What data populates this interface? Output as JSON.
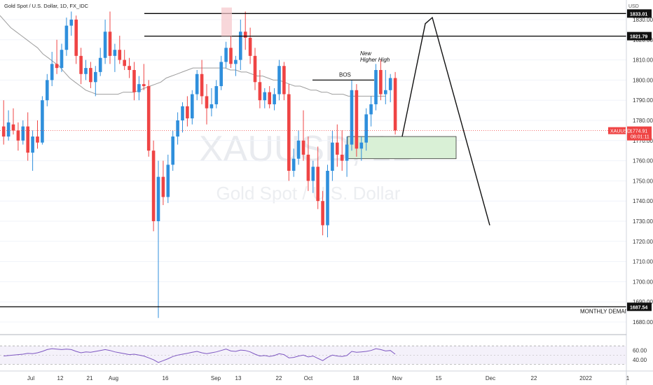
{
  "header": {
    "title": "Gold Spot / U.S. Dollar, 1D, FX_IDC",
    "currency": "USD",
    "watermark_symbol": "XAUUSD, 1D",
    "watermark_name": "Gold Spot / U.S. Dollar"
  },
  "chart_data": {
    "type": "candlestick",
    "x_ticks": [
      "Jul",
      "12",
      "21",
      "Aug",
      "16",
      "Sep",
      "13",
      "22",
      "Oct",
      "18",
      "Nov",
      "15",
      "Dec",
      "22",
      "2022",
      "1"
    ],
    "y_ticks": [
      1680,
      1690,
      1700,
      1710,
      1720,
      1730,
      1740,
      1750,
      1760,
      1770,
      1780,
      1790,
      1800,
      1810,
      1820,
      1830
    ],
    "ylim": [
      1676,
      1836
    ],
    "moving_average": [
      1832,
      1829,
      1826,
      1824,
      1822,
      1820,
      1818,
      1816,
      1813,
      1811,
      1809,
      1807,
      1804,
      1801,
      1799,
      1797,
      1795,
      1794,
      1793,
      1793,
      1793,
      1793,
      1793,
      1794,
      1794,
      1794,
      1795,
      1796,
      1797,
      1798,
      1799,
      1801,
      1802,
      1803,
      1804,
      1805,
      1806,
      1806,
      1806,
      1806,
      1806,
      1806,
      1806,
      1805,
      1805,
      1804,
      1804,
      1803,
      1802,
      1802,
      1801,
      1800,
      1800,
      1799,
      1798,
      1797,
      1797,
      1796,
      1795,
      1795,
      1794,
      1794,
      1793,
      1793,
      1793,
      1792,
      1792,
      1792,
      1792,
      1792,
      1792,
      1792,
      1792
    ],
    "candles": [
      {
        "o": 1777,
        "h": 1790,
        "l": 1768,
        "c": 1772
      },
      {
        "o": 1772,
        "h": 1785,
        "l": 1770,
        "c": 1779
      },
      {
        "o": 1778,
        "h": 1786,
        "l": 1773,
        "c": 1775
      },
      {
        "o": 1775,
        "h": 1779,
        "l": 1765,
        "c": 1770
      },
      {
        "o": 1770,
        "h": 1780,
        "l": 1768,
        "c": 1777
      },
      {
        "o": 1777,
        "h": 1784,
        "l": 1760,
        "c": 1764
      },
      {
        "o": 1764,
        "h": 1775,
        "l": 1755,
        "c": 1772
      },
      {
        "o": 1772,
        "h": 1780,
        "l": 1766,
        "c": 1769
      },
      {
        "o": 1769,
        "h": 1792,
        "l": 1768,
        "c": 1790
      },
      {
        "o": 1790,
        "h": 1803,
        "l": 1787,
        "c": 1800
      },
      {
        "o": 1800,
        "h": 1814,
        "l": 1797,
        "c": 1808
      },
      {
        "o": 1808,
        "h": 1820,
        "l": 1803,
        "c": 1806
      },
      {
        "o": 1806,
        "h": 1818,
        "l": 1804,
        "c": 1815
      },
      {
        "o": 1815,
        "h": 1831,
        "l": 1812,
        "c": 1827
      },
      {
        "o": 1827,
        "h": 1834,
        "l": 1822,
        "c": 1830
      },
      {
        "o": 1830,
        "h": 1832,
        "l": 1808,
        "c": 1812
      },
      {
        "o": 1812,
        "h": 1816,
        "l": 1798,
        "c": 1803
      },
      {
        "o": 1803,
        "h": 1810,
        "l": 1800,
        "c": 1806
      },
      {
        "o": 1806,
        "h": 1809,
        "l": 1796,
        "c": 1799
      },
      {
        "o": 1799,
        "h": 1807,
        "l": 1792,
        "c": 1804
      },
      {
        "o": 1804,
        "h": 1816,
        "l": 1802,
        "c": 1811
      },
      {
        "o": 1811,
        "h": 1830,
        "l": 1808,
        "c": 1824
      },
      {
        "o": 1824,
        "h": 1834,
        "l": 1808,
        "c": 1812
      },
      {
        "o": 1812,
        "h": 1818,
        "l": 1804,
        "c": 1815
      },
      {
        "o": 1815,
        "h": 1822,
        "l": 1808,
        "c": 1810
      },
      {
        "o": 1810,
        "h": 1815,
        "l": 1805,
        "c": 1807
      },
      {
        "o": 1807,
        "h": 1811,
        "l": 1801,
        "c": 1805
      },
      {
        "o": 1805,
        "h": 1809,
        "l": 1790,
        "c": 1794
      },
      {
        "o": 1794,
        "h": 1802,
        "l": 1790,
        "c": 1798
      },
      {
        "o": 1798,
        "h": 1808,
        "l": 1795,
        "c": 1797
      },
      {
        "o": 1797,
        "h": 1800,
        "l": 1762,
        "c": 1765
      },
      {
        "o": 1765,
        "h": 1770,
        "l": 1725,
        "c": 1730
      },
      {
        "o": 1730,
        "h": 1760,
        "l": 1682,
        "c": 1752
      },
      {
        "o": 1752,
        "h": 1760,
        "l": 1738,
        "c": 1742
      },
      {
        "o": 1742,
        "h": 1763,
        "l": 1739,
        "c": 1758
      },
      {
        "o": 1758,
        "h": 1775,
        "l": 1755,
        "c": 1772
      },
      {
        "o": 1772,
        "h": 1784,
        "l": 1768,
        "c": 1780
      },
      {
        "o": 1780,
        "h": 1789,
        "l": 1774,
        "c": 1787
      },
      {
        "o": 1787,
        "h": 1792,
        "l": 1777,
        "c": 1781
      },
      {
        "o": 1781,
        "h": 1795,
        "l": 1778,
        "c": 1793
      },
      {
        "o": 1793,
        "h": 1805,
        "l": 1790,
        "c": 1803
      },
      {
        "o": 1803,
        "h": 1810,
        "l": 1788,
        "c": 1792
      },
      {
        "o": 1792,
        "h": 1798,
        "l": 1778,
        "c": 1786
      },
      {
        "o": 1786,
        "h": 1796,
        "l": 1782,
        "c": 1788
      },
      {
        "o": 1788,
        "h": 1800,
        "l": 1786,
        "c": 1797
      },
      {
        "o": 1797,
        "h": 1812,
        "l": 1795,
        "c": 1809
      },
      {
        "o": 1809,
        "h": 1819,
        "l": 1806,
        "c": 1816
      },
      {
        "o": 1816,
        "h": 1822,
        "l": 1806,
        "c": 1808
      },
      {
        "o": 1808,
        "h": 1812,
        "l": 1802,
        "c": 1810
      },
      {
        "o": 1810,
        "h": 1830,
        "l": 1805,
        "c": 1824
      },
      {
        "o": 1824,
        "h": 1834,
        "l": 1815,
        "c": 1821
      },
      {
        "o": 1821,
        "h": 1826,
        "l": 1808,
        "c": 1812
      },
      {
        "o": 1812,
        "h": 1816,
        "l": 1795,
        "c": 1799
      },
      {
        "o": 1799,
        "h": 1805,
        "l": 1786,
        "c": 1790
      },
      {
        "o": 1790,
        "h": 1796,
        "l": 1786,
        "c": 1794
      },
      {
        "o": 1794,
        "h": 1797,
        "l": 1786,
        "c": 1788
      },
      {
        "o": 1788,
        "h": 1796,
        "l": 1785,
        "c": 1793
      },
      {
        "o": 1793,
        "h": 1810,
        "l": 1790,
        "c": 1807
      },
      {
        "o": 1807,
        "h": 1809,
        "l": 1790,
        "c": 1793
      },
      {
        "o": 1793,
        "h": 1798,
        "l": 1750,
        "c": 1755
      },
      {
        "o": 1755,
        "h": 1766,
        "l": 1752,
        "c": 1761
      },
      {
        "o": 1761,
        "h": 1775,
        "l": 1758,
        "c": 1770
      },
      {
        "o": 1770,
        "h": 1785,
        "l": 1760,
        "c": 1763
      },
      {
        "o": 1763,
        "h": 1772,
        "l": 1745,
        "c": 1750
      },
      {
        "o": 1750,
        "h": 1760,
        "l": 1744,
        "c": 1757
      },
      {
        "o": 1757,
        "h": 1767,
        "l": 1736,
        "c": 1740
      },
      {
        "o": 1740,
        "h": 1745,
        "l": 1723,
        "c": 1728
      },
      {
        "o": 1728,
        "h": 1758,
        "l": 1722,
        "c": 1755
      },
      {
        "o": 1755,
        "h": 1775,
        "l": 1750,
        "c": 1769
      },
      {
        "o": 1769,
        "h": 1778,
        "l": 1757,
        "c": 1763
      },
      {
        "o": 1763,
        "h": 1775,
        "l": 1755,
        "c": 1760
      },
      {
        "o": 1760,
        "h": 1772,
        "l": 1752,
        "c": 1768
      },
      {
        "o": 1768,
        "h": 1800,
        "l": 1765,
        "c": 1795
      },
      {
        "o": 1795,
        "h": 1798,
        "l": 1762,
        "c": 1766
      },
      {
        "o": 1766,
        "h": 1772,
        "l": 1760,
        "c": 1769
      },
      {
        "o": 1769,
        "h": 1786,
        "l": 1765,
        "c": 1783
      },
      {
        "o": 1783,
        "h": 1792,
        "l": 1777,
        "c": 1788
      },
      {
        "o": 1788,
        "h": 1808,
        "l": 1785,
        "c": 1805
      },
      {
        "o": 1805,
        "h": 1810,
        "l": 1790,
        "c": 1793
      },
      {
        "o": 1793,
        "h": 1805,
        "l": 1788,
        "c": 1795
      },
      {
        "o": 1795,
        "h": 1803,
        "l": 1789,
        "c": 1801
      },
      {
        "o": 1801,
        "h": 1804,
        "l": 1773,
        "c": 1775
      }
    ],
    "levels": [
      {
        "price": 1833.01,
        "label": "1833.01"
      },
      {
        "price": 1821.79,
        "label": "1821.79"
      },
      {
        "price": 1687.54,
        "label": "1687.54"
      }
    ],
    "current_price": {
      "value": 1774.91,
      "label": "XAUUSD",
      "value_label": "1774.91",
      "countdown": "08:01:11"
    },
    "annotations": {
      "bos": "BOS",
      "new_high_line1": "New",
      "new_high_line2": "Higher High",
      "monthly_demand": "MONTHLY DEMAND"
    },
    "rsi": {
      "y_ticks": [
        "60.00",
        "40.00"
      ],
      "values": [
        48,
        49,
        50,
        51,
        52,
        54,
        53,
        55,
        58,
        62,
        64,
        63,
        62,
        63,
        62,
        58,
        55,
        57,
        56,
        58,
        60,
        62,
        60,
        57,
        55,
        53,
        51,
        52,
        50,
        48,
        44,
        40,
        34,
        38,
        42,
        47,
        50,
        52,
        54,
        56,
        58,
        55,
        53,
        55,
        57,
        60,
        63,
        59,
        58,
        61,
        60,
        57,
        52,
        48,
        49,
        47,
        49,
        53,
        51,
        44,
        45,
        48,
        50,
        46,
        48,
        43,
        38,
        45,
        50,
        48,
        47,
        49,
        58,
        56,
        57,
        58,
        60,
        64,
        62,
        59,
        60,
        52
      ]
    }
  }
}
